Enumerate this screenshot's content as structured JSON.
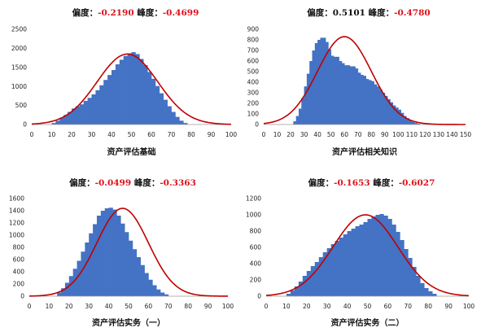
{
  "colors": {
    "bar": "#4472c4",
    "curve": "#c00000",
    "stat_value": "#e0101a"
  },
  "chart_data": [
    {
      "type": "bar",
      "title_parts": [
        {
          "text": "偏度：",
          "kind": "label"
        },
        {
          "text": "-0.2190",
          "kind": "value"
        },
        {
          "text": " 峰度：",
          "kind": "label"
        },
        {
          "text": "-0.4699",
          "kind": "value"
        }
      ],
      "xlabel": "资产评估基础",
      "ylabel": "",
      "xlim": [
        0,
        100
      ],
      "ylim": [
        0,
        2500
      ],
      "xticks": [
        0,
        10,
        20,
        30,
        40,
        50,
        60,
        70,
        80,
        90,
        100
      ],
      "yticks": [
        0,
        500,
        1000,
        1500,
        2000,
        2500
      ],
      "bin_start": 10,
      "bin_width": 2,
      "values": [
        40,
        100,
        180,
        250,
        330,
        420,
        480,
        530,
        620,
        700,
        790,
        900,
        1030,
        1170,
        1300,
        1430,
        1580,
        1700,
        1800,
        1870,
        1900,
        1850,
        1720,
        1560,
        1380,
        1200,
        1010,
        820,
        650,
        480,
        330,
        200,
        100,
        40
      ],
      "curve": {
        "mean": 48,
        "sd": 15.2,
        "peak": 1850
      }
    },
    {
      "type": "bar",
      "title_parts": [
        {
          "text": "偏度：",
          "kind": "label"
        },
        {
          "text": "0.5101",
          "kind": "label"
        },
        {
          "text": " 峰度：",
          "kind": "label"
        },
        {
          "text": "-0.4780",
          "kind": "value"
        }
      ],
      "xlabel": "资产评估相关知识",
      "ylabel": "",
      "xlim": [
        0,
        150
      ],
      "ylim": [
        0,
        900
      ],
      "xticks": [
        0,
        10,
        20,
        30,
        40,
        50,
        60,
        70,
        80,
        90,
        100,
        110,
        120,
        130,
        140,
        150
      ],
      "yticks": [
        0,
        100,
        200,
        300,
        400,
        500,
        600,
        700,
        800,
        900
      ],
      "bin_start": 22,
      "bin_width": 2,
      "values": [
        30,
        80,
        150,
        250,
        360,
        480,
        600,
        700,
        770,
        800,
        820,
        820,
        780,
        710,
        650,
        640,
        640,
        600,
        580,
        560,
        560,
        550,
        550,
        530,
        490,
        470,
        460,
        430,
        420,
        410,
        380,
        360,
        330,
        300,
        270,
        240,
        210,
        180,
        160,
        140,
        110,
        80,
        60,
        40,
        25,
        15,
        8
      ],
      "curve": {
        "mean": 60,
        "sd": 20,
        "peak": 830
      }
    },
    {
      "type": "bar",
      "title_parts": [
        {
          "text": "偏度：",
          "kind": "label"
        },
        {
          "text": "-0.0499",
          "kind": "value"
        },
        {
          "text": " 峰度：",
          "kind": "label"
        },
        {
          "text": "-0.3363",
          "kind": "value"
        }
      ],
      "xlabel": "资产评估实务（一）",
      "ylabel": "",
      "xlim": [
        0,
        100
      ],
      "ylim": [
        0,
        1600
      ],
      "xticks": [
        0,
        10,
        20,
        30,
        40,
        50,
        60,
        70,
        80,
        90,
        100
      ],
      "yticks": [
        0,
        200,
        400,
        600,
        800,
        1000,
        1200,
        1400,
        1600
      ],
      "bin_start": 14,
      "bin_width": 2,
      "values": [
        60,
        130,
        220,
        330,
        450,
        580,
        730,
        880,
        1030,
        1180,
        1320,
        1400,
        1440,
        1450,
        1420,
        1320,
        1190,
        1050,
        910,
        770,
        640,
        510,
        380,
        270,
        180,
        110,
        60,
        30
      ],
      "curve": {
        "mean": 47,
        "sd": 13,
        "peak": 1440
      }
    },
    {
      "type": "bar",
      "title_parts": [
        {
          "text": "偏度：",
          "kind": "label"
        },
        {
          "text": "-0.1653",
          "kind": "value"
        },
        {
          "text": " 峰度：",
          "kind": "label"
        },
        {
          "text": "-0.6027",
          "kind": "value"
        }
      ],
      "xlabel": "资产评估实务（二）",
      "ylabel": "",
      "xlim": [
        0,
        100
      ],
      "ylim": [
        0,
        1200
      ],
      "xticks": [
        0,
        10,
        20,
        30,
        40,
        50,
        60,
        70,
        80,
        90,
        100
      ],
      "yticks": [
        0,
        200,
        400,
        600,
        800,
        1000,
        1200
      ],
      "bin_start": 10,
      "bin_width": 2,
      "values": [
        30,
        70,
        120,
        180,
        250,
        310,
        370,
        420,
        480,
        540,
        590,
        640,
        680,
        720,
        760,
        800,
        830,
        860,
        880,
        910,
        950,
        980,
        1000,
        1010,
        990,
        950,
        880,
        790,
        690,
        580,
        470,
        360,
        250,
        160,
        100,
        60,
        30
      ],
      "curve": {
        "mean": 49,
        "sd": 16,
        "peak": 1000
      }
    }
  ]
}
